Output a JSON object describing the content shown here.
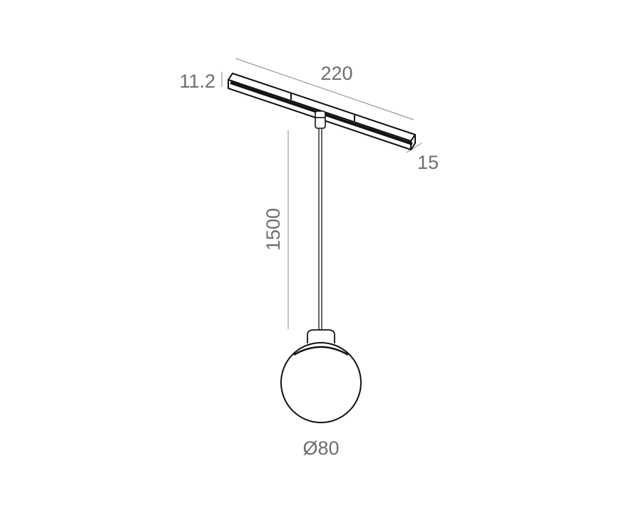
{
  "drawing": {
    "dimensions": {
      "track_length": "220",
      "track_height": "11.2",
      "track_width": "15",
      "cable_length": "1500",
      "globe_diameter": "Ø80"
    },
    "colors": {
      "line": "#111111",
      "dimension": "#6e6e6e",
      "background": "#ffffff"
    }
  }
}
